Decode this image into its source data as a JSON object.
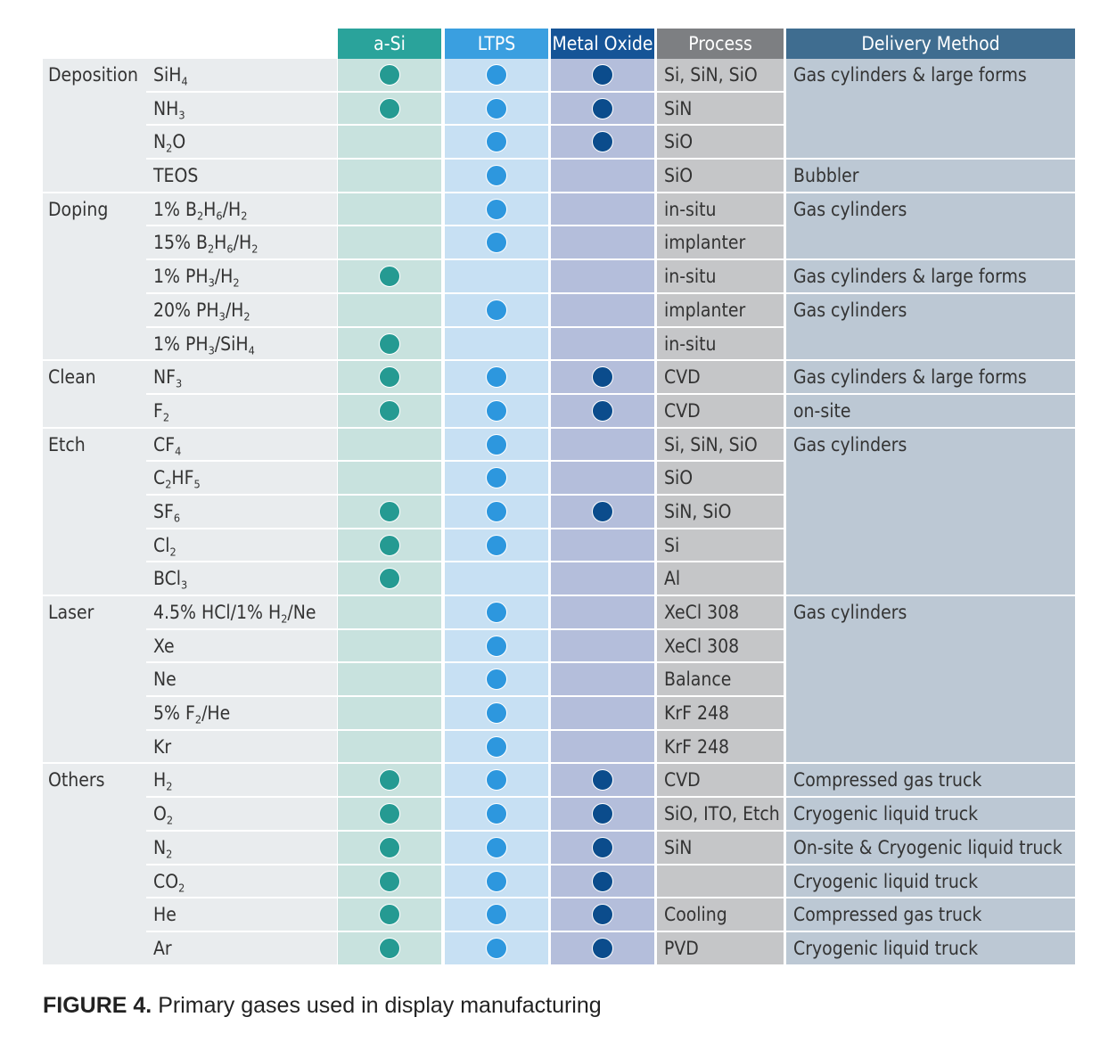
{
  "headers": {
    "asi": "a-Si",
    "ltps": "LTPS",
    "mo": "Metal Oxide",
    "process": "Process",
    "delivery": "Delivery Method"
  },
  "rows": [
    {
      "group": "Deposition",
      "gas": "SiH<sub>4</sub>",
      "asi": true,
      "ltps": true,
      "mo": true,
      "process": "Si, SiN, SiO",
      "delivery": "Gas cylinders & large forms",
      "groupEnd": false,
      "delEnd": false
    },
    {
      "group": "",
      "gas": "NH<sub>3</sub>",
      "asi": true,
      "ltps": true,
      "mo": true,
      "process": "SiN",
      "delivery": "",
      "groupEnd": false,
      "delEnd": false
    },
    {
      "group": "",
      "gas": "N<sub>2</sub>O",
      "asi": false,
      "ltps": true,
      "mo": true,
      "process": "SiO",
      "delivery": "",
      "groupEnd": false,
      "delEnd": true
    },
    {
      "group": "",
      "gas": "TEOS",
      "asi": false,
      "ltps": true,
      "mo": false,
      "process": "SiO",
      "delivery": "Bubbler",
      "groupEnd": true,
      "delEnd": true
    },
    {
      "group": "Doping",
      "gas": "1% B<sub>2</sub>H<sub>6</sub>/H<sub>2</sub>",
      "asi": false,
      "ltps": true,
      "mo": false,
      "process": "in-situ",
      "delivery": "Gas cylinders",
      "groupEnd": false,
      "delEnd": false
    },
    {
      "group": "",
      "gas": "15% B<sub>2</sub>H<sub>6</sub>/H<sub>2</sub>",
      "asi": false,
      "ltps": true,
      "mo": false,
      "process": "implanter",
      "delivery": "",
      "groupEnd": false,
      "delEnd": true
    },
    {
      "group": "",
      "gas": "1% PH<sub>3</sub>/H<sub>2</sub>",
      "asi": true,
      "ltps": false,
      "mo": false,
      "process": "in-situ",
      "delivery": "Gas cylinders & large forms",
      "groupEnd": false,
      "delEnd": true
    },
    {
      "group": "",
      "gas": "20% PH<sub>3</sub>/H<sub>2</sub>",
      "asi": false,
      "ltps": true,
      "mo": false,
      "process": "implanter",
      "delivery": "Gas cylinders",
      "groupEnd": false,
      "delEnd": false
    },
    {
      "group": "",
      "gas": "1% PH<sub>3</sub>/SiH<sub>4</sub>",
      "asi": true,
      "ltps": false,
      "mo": false,
      "process": "in-situ",
      "delivery": "",
      "groupEnd": true,
      "delEnd": true
    },
    {
      "group": "Clean",
      "gas": "NF<sub>3</sub>",
      "asi": true,
      "ltps": true,
      "mo": true,
      "process": "CVD",
      "delivery": "Gas cylinders & large forms",
      "groupEnd": false,
      "delEnd": true
    },
    {
      "group": "",
      "gas": "F<sub>2</sub>",
      "asi": true,
      "ltps": true,
      "mo": true,
      "process": "CVD",
      "delivery": "on-site",
      "groupEnd": true,
      "delEnd": true
    },
    {
      "group": "Etch",
      "gas": "CF<sub>4</sub>",
      "asi": false,
      "ltps": true,
      "mo": false,
      "process": "Si, SiN, SiO",
      "delivery": "Gas cylinders",
      "groupEnd": false,
      "delEnd": false
    },
    {
      "group": "",
      "gas": "C<sub>2</sub>HF<sub>5</sub>",
      "asi": false,
      "ltps": true,
      "mo": false,
      "process": "SiO",
      "delivery": "",
      "groupEnd": false,
      "delEnd": false
    },
    {
      "group": "",
      "gas": "SF<sub>6</sub>",
      "asi": true,
      "ltps": true,
      "mo": true,
      "process": "SiN, SiO",
      "delivery": "",
      "groupEnd": false,
      "delEnd": false
    },
    {
      "group": "",
      "gas": "Cl<sub>2</sub>",
      "asi": true,
      "ltps": true,
      "mo": false,
      "process": "Si",
      "delivery": "",
      "groupEnd": false,
      "delEnd": false
    },
    {
      "group": "",
      "gas": "BCl<sub>3</sub>",
      "asi": true,
      "ltps": false,
      "mo": false,
      "process": "Al",
      "delivery": "",
      "groupEnd": true,
      "delEnd": true
    },
    {
      "group": "Laser",
      "gas": "4.5% HCl/1% H<sub>2</sub>/Ne",
      "asi": false,
      "ltps": true,
      "mo": false,
      "process": "XeCl 308",
      "delivery": "Gas cylinders",
      "groupEnd": false,
      "delEnd": false
    },
    {
      "group": "",
      "gas": "Xe",
      "asi": false,
      "ltps": true,
      "mo": false,
      "process": "XeCl 308",
      "delivery": "",
      "groupEnd": false,
      "delEnd": false
    },
    {
      "group": "",
      "gas": "Ne",
      "asi": false,
      "ltps": true,
      "mo": false,
      "process": "Balance",
      "delivery": "",
      "groupEnd": false,
      "delEnd": false
    },
    {
      "group": "",
      "gas": "5% F<sub>2</sub>/He",
      "asi": false,
      "ltps": true,
      "mo": false,
      "process": "KrF 248",
      "delivery": "",
      "groupEnd": false,
      "delEnd": false
    },
    {
      "group": "",
      "gas": "Kr",
      "asi": false,
      "ltps": true,
      "mo": false,
      "process": "KrF 248",
      "delivery": "",
      "groupEnd": true,
      "delEnd": true
    },
    {
      "group": "Others",
      "gas": "H<sub>2</sub>",
      "asi": true,
      "ltps": true,
      "mo": true,
      "process": "CVD",
      "delivery": "Compressed gas truck",
      "groupEnd": false,
      "delEnd": true
    },
    {
      "group": "",
      "gas": "O<sub>2</sub>",
      "asi": true,
      "ltps": true,
      "mo": true,
      "process": "SiO, ITO, Etch",
      "delivery": "Cryogenic liquid truck",
      "groupEnd": false,
      "delEnd": true
    },
    {
      "group": "",
      "gas": "N<sub>2</sub>",
      "asi": true,
      "ltps": true,
      "mo": true,
      "process": "SiN",
      "delivery": "On-site & Cryogenic liquid truck",
      "groupEnd": false,
      "delEnd": true
    },
    {
      "group": "",
      "gas": "CO<sub>2</sub>",
      "asi": true,
      "ltps": true,
      "mo": true,
      "process": "",
      "delivery": "Cryogenic liquid truck",
      "groupEnd": false,
      "delEnd": true
    },
    {
      "group": "",
      "gas": "He",
      "asi": true,
      "ltps": true,
      "mo": true,
      "process": "Cooling",
      "delivery": "Compressed gas truck",
      "groupEnd": false,
      "delEnd": true
    },
    {
      "group": "",
      "gas": "Ar",
      "asi": true,
      "ltps": true,
      "mo": true,
      "process": "PVD",
      "delivery": "Cryogenic liquid truck",
      "groupEnd": true,
      "delEnd": true
    }
  ],
  "caption": {
    "label": "FIGURE 4.",
    "text": " Primary gases used in display manufacturing"
  }
}
